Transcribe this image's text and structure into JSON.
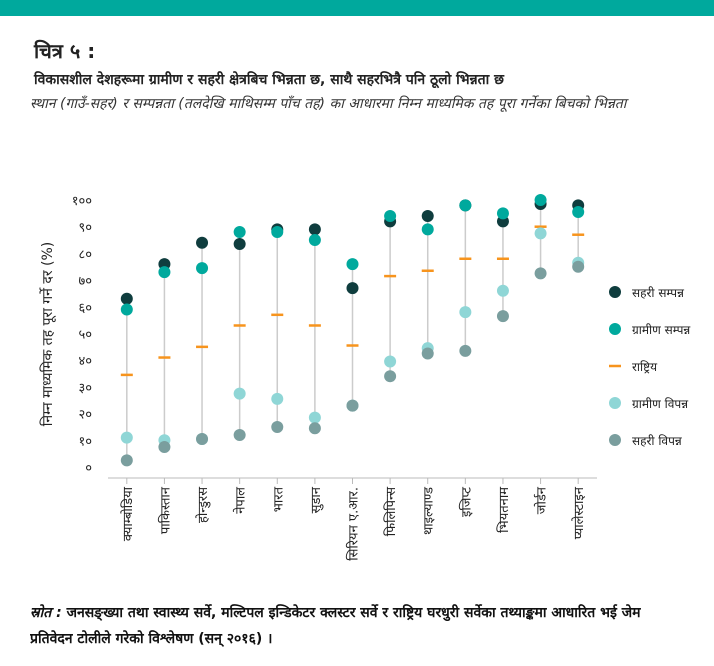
{
  "chart_data": {
    "type": "dot",
    "title": "चित्र ५ :",
    "subtitle": "विकासशील देशहरूमा ग्रामीण र सहरी क्षेत्रबिच भिन्नता छ, साथै सहरभित्रै पनि ठूलो भिन्नता छ",
    "description": "स्थान (गाउँ-सहर) र सम्पन्नता (तलदेखि माथिसम्म पाँच तह) का आधारमा निम्न माध्यमिक तह पूरा गर्नेका बिचको भिन्नता",
    "ylabel": "निम्न माध्यमिक तह पूरा गर्ने दर (%)",
    "source_label": "स्रोत :",
    "source": "जनसङ्ख्या तथा स्वास्थ्य सर्वे, मल्टिपल इन्डिकेटर क्लस्टर सर्वे र राष्ट्रिय घरधुरी सर्वेका तथ्याङ्कमा आधारित भई जेम प्रतिवेदन टोलीले गरेको विश्लेषण (सन् २०१६) ।",
    "categories": [
      "क्याम्बोडिया",
      "पाकिस्तान",
      "होन्डुरस",
      "नेपाल",
      "भारत",
      "सुडान",
      "सिरियन ए.आर.",
      "फिलिपिन्स",
      "थाइल्याण्ड",
      "इजिप्ट",
      "भियतनाम",
      "जोर्डन",
      "प्यालेस्टाइन"
    ],
    "series": [
      {
        "name": "सहरी सम्पन्न",
        "color": "#0f3d3e",
        "marker": "dot",
        "values": [
          63,
          76,
          84,
          83.5,
          89,
          89,
          67,
          92,
          94,
          98,
          92,
          98.5,
          98
        ]
      },
      {
        "name": "ग्रामीण सम्पन्न",
        "color": "#00a99d",
        "marker": "dot",
        "values": [
          59,
          73,
          74.5,
          88,
          88,
          85,
          76,
          94,
          89,
          98,
          95,
          100,
          95.5
        ]
      },
      {
        "name": "राष्ट्रिय",
        "color": "#f7941d",
        "marker": "dash",
        "values": [
          34.5,
          41,
          45,
          53,
          57,
          53,
          45.5,
          71.5,
          73.5,
          78,
          78,
          90,
          87
        ]
      },
      {
        "name": "ग्रामीण विपन्न",
        "color": "#8fd6d6",
        "marker": "dot",
        "values": [
          11,
          10,
          10.5,
          27.5,
          25.5,
          18.5,
          23,
          39.5,
          44.5,
          58,
          66,
          87.5,
          76.5
        ]
      },
      {
        "name": "सहरी विपन्न",
        "color": "#7a9e9e",
        "marker": "dot",
        "values": [
          2.5,
          7.5,
          10.5,
          12,
          15,
          14.5,
          23,
          34,
          42.5,
          43.5,
          56.5,
          72.5,
          75
        ]
      }
    ],
    "ylim": [
      0,
      100
    ],
    "yticks": [
      {
        "value": 0,
        "label": "०"
      },
      {
        "value": 10,
        "label": "१०"
      },
      {
        "value": 20,
        "label": "२०"
      },
      {
        "value": 30,
        "label": "३०"
      },
      {
        "value": 40,
        "label": "४०"
      },
      {
        "value": 50,
        "label": "५०"
      },
      {
        "value": 60,
        "label": "६०"
      },
      {
        "value": 70,
        "label": "७०"
      },
      {
        "value": 80,
        "label": "८०"
      },
      {
        "value": 90,
        "label": "९०"
      },
      {
        "value": 100,
        "label": "१००"
      }
    ],
    "legend": "right"
  }
}
